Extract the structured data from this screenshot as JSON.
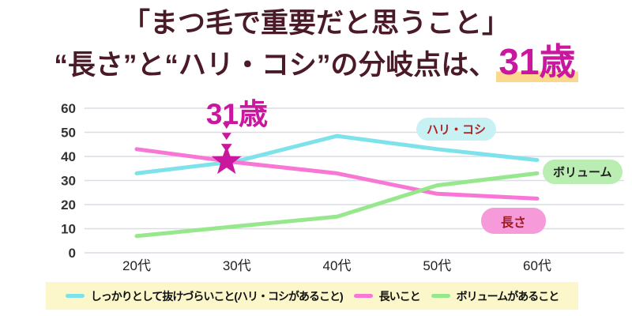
{
  "title": {
    "line1": "「まつ毛で重要だと思うこと」",
    "line2_prefix": "“長さ”と“ハリ・コシ”の分岐点は、",
    "line2_highlight": "31歳"
  },
  "annotation": {
    "label": "31歳",
    "marker": "star",
    "x_category": "30代",
    "y_value": 38
  },
  "badges": {
    "hari_koshi": {
      "label": "ハリ・コシ",
      "bg": "#c8f1f4",
      "text": "#ae2328"
    },
    "volume": {
      "label": "ボリューム",
      "bg": "#b9edb1",
      "text": "#222222"
    },
    "nagasa": {
      "label": "長さ",
      "bg": "#f79ad9",
      "text": "#9e1c22"
    }
  },
  "colors": {
    "title_text": "#4a1a27",
    "highlight_magenta": "#c9189e",
    "highlight_underline": "#fbd88e",
    "grid": "#d9dee5",
    "legend_background": "#fbf7ca",
    "series_hari_koshi": "#7de2ea",
    "series_nagai": "#f877d5",
    "series_volume": "#97e78c"
  },
  "chart_data": {
    "type": "line",
    "title": "まつ毛で重要だと思うこと",
    "categories": [
      "20代",
      "30代",
      "40代",
      "50代",
      "60代"
    ],
    "series": [
      {
        "name": "しっかりとして抜けづらいこと(ハリ・コシがあること)",
        "short_label": "ハリ・コシ",
        "color": "#7de2ea",
        "values": [
          33,
          38,
          48.5,
          43,
          38.5
        ]
      },
      {
        "name": "長いこと",
        "short_label": "長さ",
        "color": "#f877d5",
        "values": [
          43,
          37.5,
          33,
          24.5,
          22.5
        ]
      },
      {
        "name": "ボリュームがあること",
        "short_label": "ボリューム",
        "color": "#97e78c",
        "values": [
          7,
          11,
          15,
          28,
          33
        ]
      }
    ],
    "xlabel": "",
    "ylabel": "",
    "ylim": [
      0,
      60
    ],
    "yticks": [
      0,
      10,
      20,
      30,
      40,
      50,
      60
    ],
    "grid": true,
    "legend_position": "bottom",
    "annotation": {
      "label": "31歳",
      "x_category": "30代",
      "y_value": 38,
      "marker": "star",
      "color": "#c9189e"
    }
  }
}
